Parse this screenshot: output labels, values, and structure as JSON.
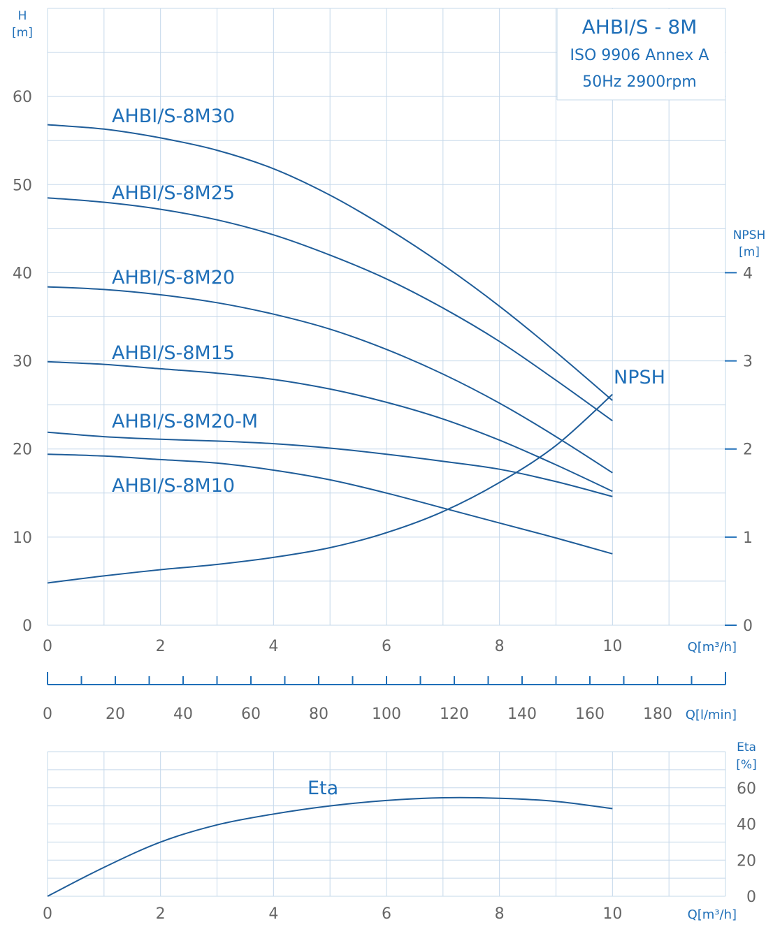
{
  "title_block": {
    "title": "AHBI/S - 8M",
    "standard": "ISO 9906 Annex A",
    "conditions": "50Hz 2900rpm"
  },
  "colors": {
    "curve": "#1f5d99",
    "text": "#1f6fb8",
    "grid": "#c5d8ea",
    "tick": "#666666",
    "axis": "#1f6fb8"
  },
  "chart_data": [
    {
      "type": "line",
      "id": "head",
      "xlabel": "Q[m³/h]",
      "ylabel": "H\n[m]",
      "x_range": [
        0,
        12
      ],
      "y_range": [
        0,
        70
      ],
      "x_ticks": [
        0,
        2,
        4,
        6,
        8,
        10
      ],
      "y_ticks": [
        0,
        10,
        20,
        30,
        40,
        50,
        60
      ],
      "grid": true,
      "series": [
        {
          "name": "AHBI/S-8M30",
          "x": [
            0,
            1,
            2,
            3,
            4,
            5,
            6,
            7,
            8,
            9,
            10
          ],
          "y": [
            56.8,
            56.3,
            55.3,
            53.9,
            51.8,
            48.8,
            45.1,
            40.9,
            36.2,
            31.0,
            25.5
          ]
        },
        {
          "name": "AHBI/S-8M25",
          "x": [
            0,
            1,
            2,
            3,
            4,
            5,
            6,
            7,
            8,
            9,
            10
          ],
          "y": [
            48.5,
            48.0,
            47.2,
            46.0,
            44.3,
            42.0,
            39.3,
            36.0,
            32.2,
            27.8,
            23.2
          ]
        },
        {
          "name": "AHBI/S-8M20",
          "x": [
            0,
            1,
            2,
            3,
            4,
            5,
            6,
            7,
            8,
            9,
            10
          ],
          "y": [
            38.4,
            38.1,
            37.5,
            36.6,
            35.3,
            33.6,
            31.3,
            28.5,
            25.2,
            21.4,
            17.3
          ]
        },
        {
          "name": "AHBI/S-8M15",
          "x": [
            0,
            1,
            2,
            3,
            4,
            5,
            6,
            7,
            8,
            9,
            10
          ],
          "y": [
            29.9,
            29.6,
            29.1,
            28.6,
            27.9,
            26.8,
            25.3,
            23.4,
            21.0,
            18.2,
            15.2
          ]
        },
        {
          "name": "AHBI/S-8M20-M",
          "x": [
            0,
            1,
            2,
            3,
            4,
            5,
            6,
            7,
            8,
            9,
            10
          ],
          "y": [
            21.9,
            21.4,
            21.1,
            20.9,
            20.6,
            20.1,
            19.4,
            18.6,
            17.7,
            16.3,
            14.6
          ]
        },
        {
          "name": "AHBI/S-8M10",
          "x": [
            0,
            1,
            2,
            3,
            4,
            5,
            6,
            7,
            8,
            9,
            10
          ],
          "y": [
            19.4,
            19.2,
            18.8,
            18.4,
            17.6,
            16.5,
            15.0,
            13.3,
            11.6,
            9.9,
            8.1
          ]
        }
      ]
    },
    {
      "type": "line",
      "id": "npsh",
      "ylabel": "NPSH\n[m]",
      "y_range": [
        0,
        7
      ],
      "y_ticks": [
        0,
        1,
        2,
        3,
        4
      ],
      "series": [
        {
          "name": "NPSH",
          "x": [
            0,
            1,
            2,
            3,
            4,
            5,
            6,
            7,
            8,
            9,
            10
          ],
          "y": [
            0.48,
            0.56,
            0.63,
            0.69,
            0.77,
            0.88,
            1.05,
            1.29,
            1.62,
            2.04,
            2.62
          ]
        }
      ]
    },
    {
      "type": "line",
      "id": "flow_lmin_axis",
      "xlabel": "Q[l/min]",
      "x_range": [
        0,
        200
      ],
      "x_ticks": [
        0,
        20,
        40,
        60,
        80,
        100,
        120,
        140,
        160,
        180
      ]
    },
    {
      "type": "line",
      "id": "eta",
      "xlabel": "Q[m³/h]",
      "ylabel": "Eta\n[%]",
      "x_range": [
        0,
        12
      ],
      "y_range": [
        0,
        80
      ],
      "x_ticks": [
        0,
        2,
        4,
        6,
        8,
        10
      ],
      "y_ticks": [
        0,
        20,
        40,
        60
      ],
      "grid": true,
      "series": [
        {
          "name": "Eta",
          "x": [
            0,
            1,
            2,
            3,
            4,
            5,
            6,
            7,
            8,
            9,
            10
          ],
          "y": [
            0,
            16,
            30,
            39.5,
            45.5,
            50,
            53,
            54.5,
            54.2,
            52.5,
            48.5
          ]
        }
      ]
    }
  ]
}
